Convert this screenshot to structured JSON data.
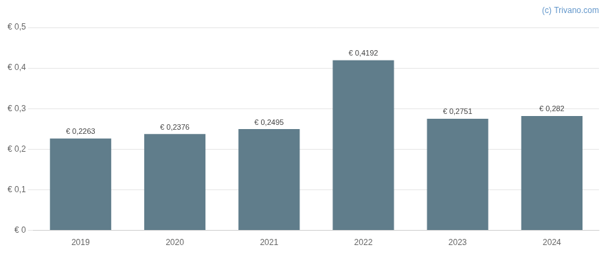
{
  "chart_data": {
    "type": "bar",
    "annotation": "(c) Trivano.com",
    "categories": [
      "2019",
      "2020",
      "2021",
      "2022",
      "2023",
      "2024"
    ],
    "values": [
      0.2263,
      0.2376,
      0.2495,
      0.4192,
      0.2751,
      0.282
    ],
    "value_labels": [
      "€ 0,2263",
      "€ 0,2376",
      "€ 0,2495",
      "€ 0,4192",
      "€ 0,2751",
      "€ 0,282"
    ],
    "data_labels": true,
    "color": "#607d8b",
    "ylim": [
      0,
      0.5
    ],
    "yticks": [
      {
        "value": 0,
        "label": "€ 0"
      },
      {
        "value": 0.1,
        "label": "€ 0,1"
      },
      {
        "value": 0.2,
        "label": "€ 0,2"
      },
      {
        "value": 0.3,
        "label": "€ 0,3"
      },
      {
        "value": 0.4,
        "label": "€ 0,4"
      },
      {
        "value": 0.5,
        "label": "€ 0,5"
      }
    ],
    "grid": true
  }
}
